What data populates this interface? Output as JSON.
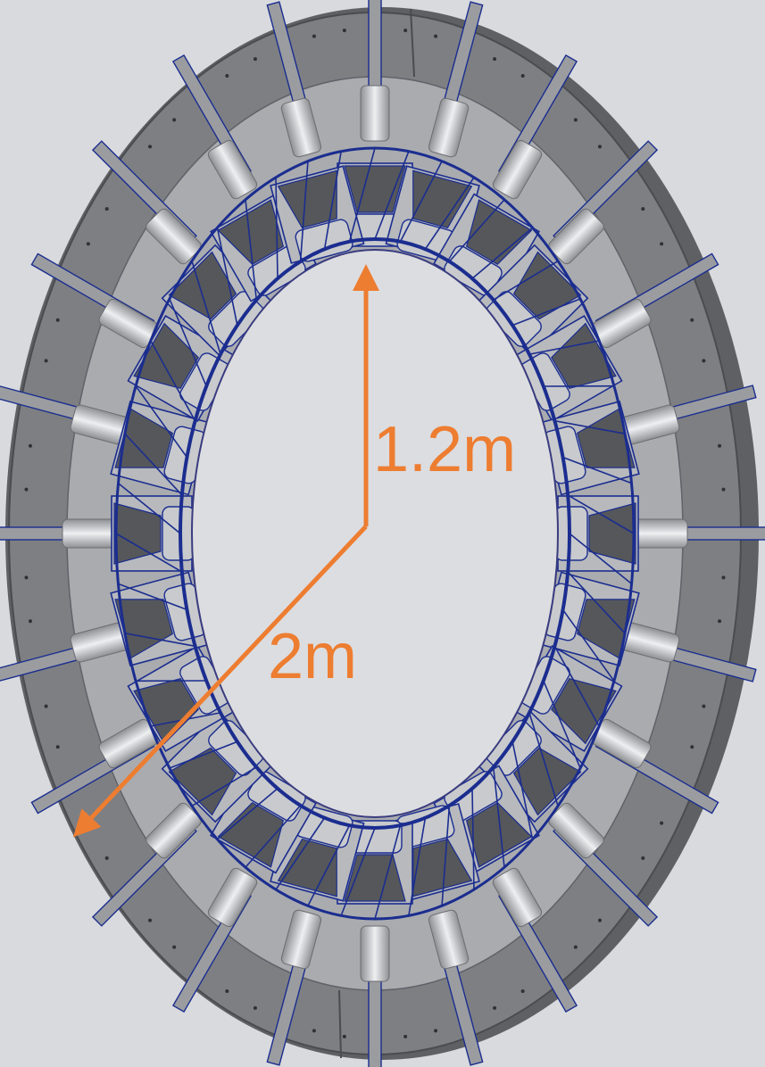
{
  "figure": {
    "colors": {
      "background": "#d9dadd",
      "ring": "#7d7f83",
      "ring_light": "#a9abaf",
      "ring_edge": "#5e6064",
      "frame_blue": "#1b2d8f",
      "coil": "#c9cbcf",
      "module_fill": "#b7b9bd",
      "module_dark": "#55575b",
      "bore": "#dcdde0",
      "annotation": "#ed7d31"
    },
    "module_count": 24,
    "annotations": {
      "inner_radius_label": "1.2m",
      "outer_radius_label": "2m"
    }
  }
}
